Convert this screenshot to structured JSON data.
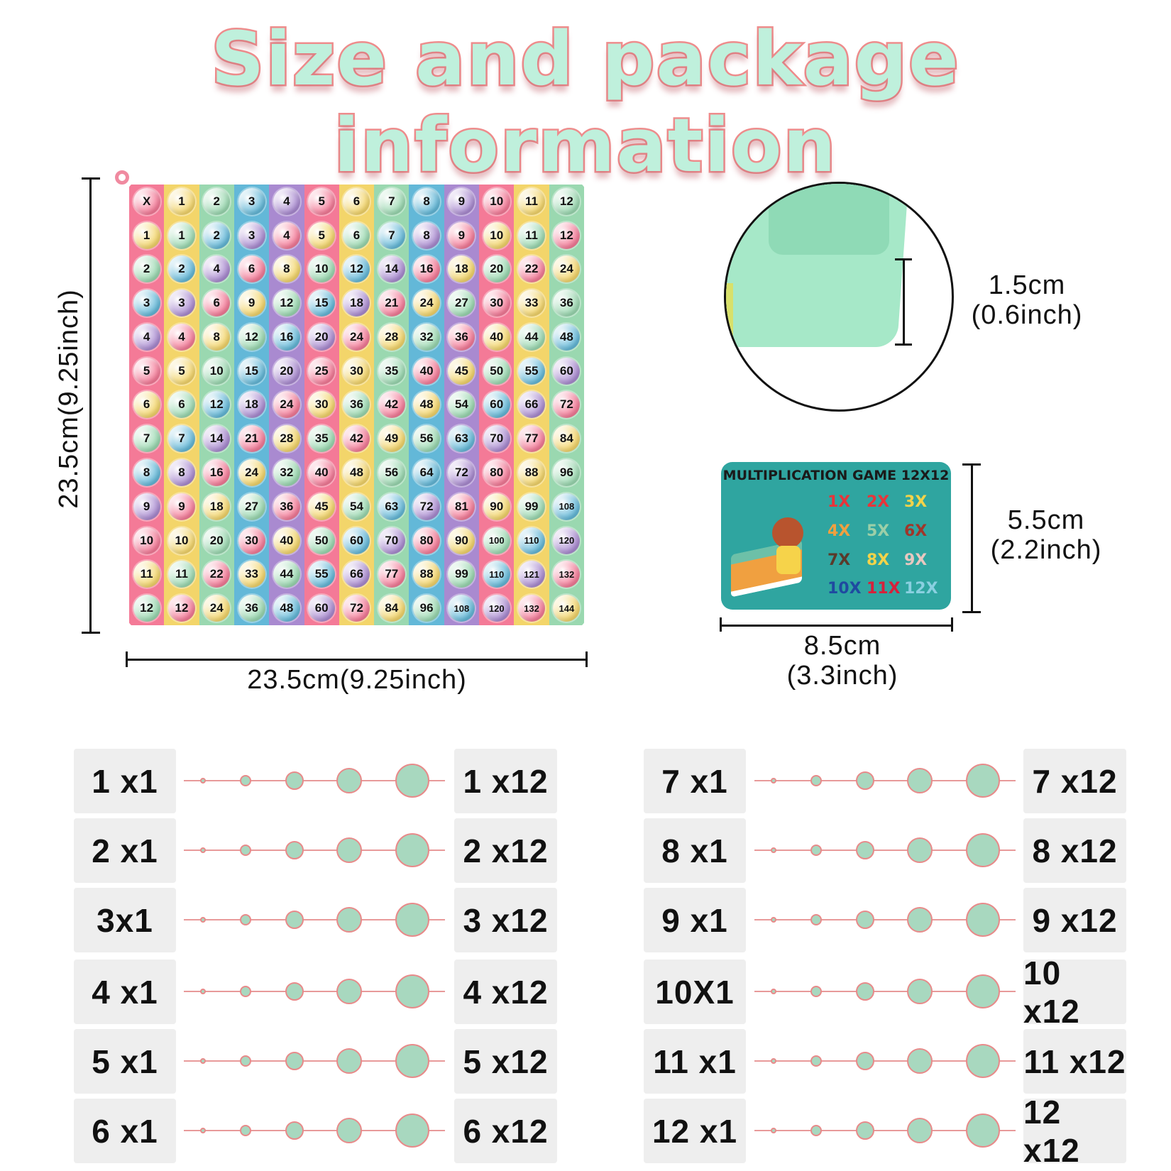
{
  "title": "Size and package information",
  "board": {
    "column_colors": [
      "#f47a97",
      "#f3d56a",
      "#9ad8b0",
      "#63b8d8",
      "#a98ad0",
      "#f47a97",
      "#f3d56a",
      "#9ad8b0",
      "#63b8d8",
      "#a98ad0",
      "#f47a97",
      "#f3d56a",
      "#9ad8b0"
    ],
    "rows": [
      [
        "X",
        "1",
        "2",
        "3",
        "4",
        "5",
        "6",
        "7",
        "8",
        "9",
        "10",
        "11",
        "12"
      ],
      [
        "1",
        "1",
        "2",
        "3",
        "4",
        "5",
        "6",
        "7",
        "8",
        "9",
        "10",
        "11",
        "12"
      ],
      [
        "2",
        "2",
        "4",
        "6",
        "8",
        "10",
        "12",
        "14",
        "16",
        "18",
        "20",
        "22",
        "24"
      ],
      [
        "3",
        "3",
        "6",
        "9",
        "12",
        "15",
        "18",
        "21",
        "24",
        "27",
        "30",
        "33",
        "36"
      ],
      [
        "4",
        "4",
        "8",
        "12",
        "16",
        "20",
        "24",
        "28",
        "32",
        "36",
        "40",
        "44",
        "48"
      ],
      [
        "5",
        "5",
        "10",
        "15",
        "20",
        "25",
        "30",
        "35",
        "40",
        "45",
        "50",
        "55",
        "60"
      ],
      [
        "6",
        "6",
        "12",
        "18",
        "24",
        "30",
        "36",
        "42",
        "48",
        "54",
        "60",
        "66",
        "72"
      ],
      [
        "7",
        "7",
        "14",
        "21",
        "28",
        "35",
        "42",
        "49",
        "56",
        "63",
        "70",
        "77",
        "84"
      ],
      [
        "8",
        "8",
        "16",
        "24",
        "32",
        "40",
        "48",
        "56",
        "64",
        "72",
        "80",
        "88",
        "96"
      ],
      [
        "9",
        "9",
        "18",
        "27",
        "36",
        "45",
        "54",
        "63",
        "72",
        "81",
        "90",
        "99",
        "108"
      ],
      [
        "10",
        "10",
        "20",
        "30",
        "40",
        "50",
        "60",
        "70",
        "80",
        "90",
        "100",
        "110",
        "120"
      ],
      [
        "11",
        "11",
        "22",
        "33",
        "44",
        "55",
        "66",
        "77",
        "88",
        "99",
        "110",
        "121",
        "132"
      ],
      [
        "12",
        "12",
        "24",
        "36",
        "48",
        "60",
        "72",
        "84",
        "96",
        "108",
        "120",
        "132",
        "144"
      ]
    ],
    "height_label": "23.5cm(9.25inch)",
    "width_label": "23.5cm(9.25inch)"
  },
  "thickness": {
    "cm": "1.5cm",
    "inch": "(0.6inch)"
  },
  "card": {
    "title": "MULTIPLICATION GAME 12X12",
    "items": [
      {
        "text": "1X",
        "color": "#e8343a"
      },
      {
        "text": "2X",
        "color": "#e8343a"
      },
      {
        "text": "3X",
        "color": "#f3d34a"
      },
      {
        "text": "4X",
        "color": "#f0a040"
      },
      {
        "text": "5X",
        "color": "#9ccfa8"
      },
      {
        "text": "6X",
        "color": "#a0362a"
      },
      {
        "text": "7X",
        "color": "#5a3a2a"
      },
      {
        "text": "8X",
        "color": "#f3d34a"
      },
      {
        "text": "9X",
        "color": "#e8c8c0"
      },
      {
        "text": "10X",
        "color": "#1f4aa0"
      },
      {
        "text": "11X",
        "color": "#d8203a"
      },
      {
        "text": "12X",
        "color": "#8ad0e0"
      }
    ],
    "height_cm": "5.5cm",
    "height_inch": "(2.2inch)",
    "width_cm": "8.5cm",
    "width_inch": "(3.3inch)"
  },
  "size_rows": {
    "left": [
      {
        "from": "1 x1",
        "to": "1 x12"
      },
      {
        "from": "2 x1",
        "to": "2 x12"
      },
      {
        "from": "3x1",
        "to": "3 x12"
      },
      {
        "from": "4 x1",
        "to": "4 x12"
      },
      {
        "from": "5 x1",
        "to": "5 x12"
      },
      {
        "from": "6 x1",
        "to": "6 x12"
      }
    ],
    "right": [
      {
        "from": "7 x1",
        "to": "7 x12"
      },
      {
        "from": "8 x1",
        "to": "8 x12"
      },
      {
        "from": "9 x1",
        "to": "9 x12"
      },
      {
        "from": "10X1",
        "to": "10 x12"
      },
      {
        "from": "11 x1",
        "to": "11 x12"
      },
      {
        "from": "12 x1",
        "to": "12 x12"
      }
    ]
  },
  "colors": {
    "pop_green": "#a8d8bf",
    "accent_pink": "#e88a8a",
    "tile_bg": "#eeeeee"
  }
}
